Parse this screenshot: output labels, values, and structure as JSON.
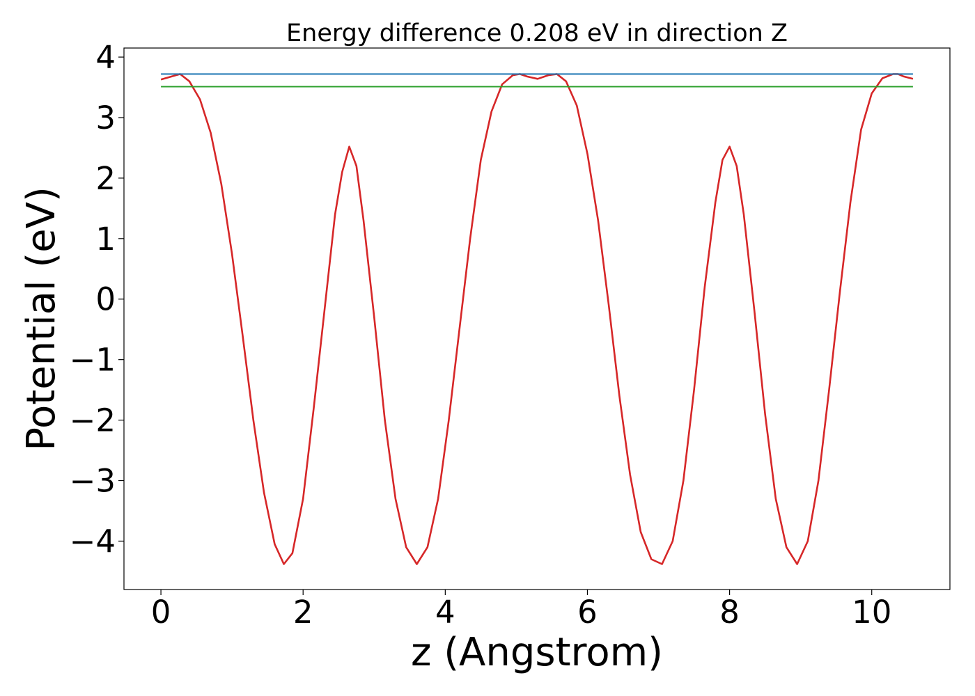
{
  "chart_data": {
    "type": "line",
    "title": "Energy difference 0.208 eV in direction Z",
    "xlabel": "z (Angstrom)",
    "ylabel": "Potential (eV)",
    "xlim": [
      -0.52,
      11.1
    ],
    "ylim": [
      -4.8,
      4.15
    ],
    "xticks": [
      0,
      2,
      4,
      6,
      8,
      10
    ],
    "xtick_labels": [
      "0",
      "2",
      "4",
      "6",
      "8",
      "10"
    ],
    "yticks": [
      -4,
      -3,
      -2,
      -1,
      0,
      1,
      2,
      3,
      4
    ],
    "ytick_labels": [
      "−4",
      "−3",
      "−2",
      "−1",
      "0",
      "1",
      "2",
      "3",
      "4"
    ],
    "grid": false,
    "series": [
      {
        "color": "#d62728",
        "x": [
          0.0,
          0.15,
          0.27,
          0.4,
          0.55,
          0.7,
          0.85,
          1.0,
          1.15,
          1.3,
          1.45,
          1.6,
          1.73,
          1.85,
          2.0,
          2.15,
          2.3,
          2.45,
          2.55,
          2.65,
          2.75,
          2.85,
          3.0,
          3.15,
          3.3,
          3.45,
          3.6,
          3.75,
          3.9,
          4.05,
          4.2,
          4.35,
          4.5,
          4.65,
          4.8,
          4.95,
          5.05,
          5.15,
          5.3,
          5.45,
          5.57,
          5.7,
          5.85,
          6.0,
          6.15,
          6.3,
          6.45,
          6.6,
          6.75,
          6.9,
          7.05,
          7.2,
          7.35,
          7.5,
          7.65,
          7.8,
          7.9,
          8.0,
          8.1,
          8.2,
          8.35,
          8.5,
          8.65,
          8.8,
          8.95,
          9.1,
          9.25,
          9.4,
          9.55,
          9.7,
          9.85,
          10.0,
          10.15,
          10.3,
          10.37,
          10.45,
          10.58
        ],
        "y": [
          3.63,
          3.68,
          3.72,
          3.6,
          3.3,
          2.75,
          1.9,
          0.75,
          -0.6,
          -2.0,
          -3.2,
          -4.05,
          -4.38,
          -4.2,
          -3.3,
          -1.8,
          -0.2,
          1.4,
          2.1,
          2.52,
          2.2,
          1.3,
          -0.3,
          -2.0,
          -3.3,
          -4.1,
          -4.38,
          -4.1,
          -3.3,
          -2.0,
          -0.5,
          1.0,
          2.3,
          3.1,
          3.55,
          3.7,
          3.72,
          3.68,
          3.64,
          3.7,
          3.72,
          3.6,
          3.2,
          2.4,
          1.3,
          -0.1,
          -1.6,
          -2.9,
          -3.85,
          -4.3,
          -4.38,
          -4.0,
          -3.0,
          -1.5,
          0.2,
          1.6,
          2.3,
          2.52,
          2.2,
          1.4,
          -0.2,
          -1.9,
          -3.3,
          -4.1,
          -4.38,
          -4.0,
          -3.0,
          -1.5,
          0.1,
          1.6,
          2.8,
          3.4,
          3.65,
          3.72,
          3.72,
          3.68,
          3.64
        ]
      },
      {
        "color": "#1f77b4",
        "x": [
          0.0,
          10.58
        ],
        "y": [
          3.72,
          3.72
        ]
      },
      {
        "color": "#2ca02c",
        "x": [
          0.0,
          10.58
        ],
        "y": [
          3.512,
          3.512
        ]
      }
    ]
  }
}
